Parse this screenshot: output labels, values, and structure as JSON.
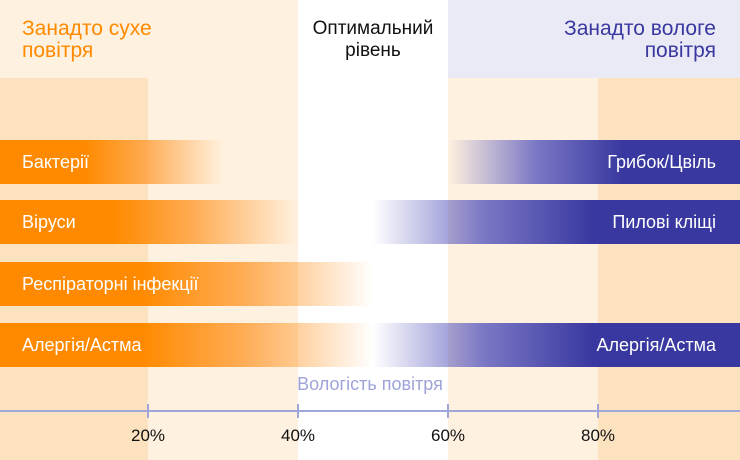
{
  "headers": {
    "dry": [
      "Занадто сухе",
      "повітря"
    ],
    "optimal": [
      "Оптимальний",
      "рівень"
    ],
    "humid": [
      "Занадто вологе",
      "повітря"
    ]
  },
  "colors": {
    "dry": "#ff8a00",
    "humid": "#3838a0",
    "dry_zone_dark": "#fde2bf",
    "dry_zone_light": "#fff1df",
    "humid_zone_light": "#e9e9f7",
    "axis": "#a0a6d8"
  },
  "bars_dry": [
    {
      "label": "Бактерії",
      "from": 0,
      "to": 30
    },
    {
      "label": "Віруси",
      "from": 0,
      "to": 40
    },
    {
      "label": "Респіраторні інфекції",
      "from": 0,
      "to": 50
    },
    {
      "label": "Алергія/Астма",
      "from": 0,
      "to": 50
    }
  ],
  "bars_humid": [
    {
      "label": "Грибок/Цвіль",
      "from": 60,
      "to": 100
    },
    {
      "label": "Пилові кліщі",
      "from": 50,
      "to": 100
    },
    {
      "label": "Алергія/Астма",
      "from": 50,
      "to": 100
    }
  ],
  "axis": {
    "title": "Вологість повітря",
    "ticks": [
      20,
      40,
      60,
      80
    ],
    "tick_labels": [
      "20%",
      "40%",
      "60%",
      "80%"
    ]
  }
}
